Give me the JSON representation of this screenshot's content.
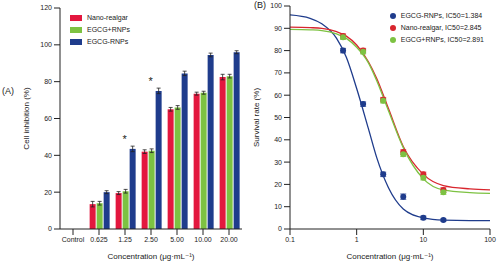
{
  "chart_data": [
    {
      "type": "bar",
      "panel_label": "(A)",
      "x_label": "Concentration (μg·mL⁻¹)",
      "y_label": "Cell inhibition (%)",
      "categories": [
        "Control",
        "0.625",
        "1.25",
        "2.50",
        "5.00",
        "10.00",
        "20.00"
      ],
      "series": [
        {
          "name": "Nano-realgar",
          "color": "#e3173e",
          "values": [
            0,
            13.5,
            19.5,
            42,
            65,
            73.5,
            82.5
          ],
          "errors": [
            0,
            1.5,
            0.8,
            1,
            1,
            0.8,
            1.5
          ]
        },
        {
          "name": "EGCG+RNPs",
          "color": "#7dc242",
          "values": [
            0,
            14,
            20.5,
            42.5,
            66,
            74,
            83
          ],
          "errors": [
            0,
            1,
            1,
            1,
            1,
            0.8,
            1
          ]
        },
        {
          "name": "EGCG-RNPs",
          "color": "#1f3c8c",
          "values": [
            0,
            20,
            43.5,
            75,
            84.5,
            94.5,
            96
          ],
          "errors": [
            0,
            0.8,
            1.5,
            1.5,
            1.2,
            1,
            0.8
          ]
        }
      ],
      "annotations": [
        {
          "category": "1.25",
          "text": "*"
        },
        {
          "category": "2.50",
          "text": "*"
        }
      ],
      "ylim": [
        0,
        120
      ],
      "yticks": [
        0,
        20,
        40,
        60,
        80,
        100,
        120
      ],
      "grid": false,
      "legend": "upper left"
    },
    {
      "type": "scatter",
      "panel_label": "(B)",
      "x_label": "Concentration (μg·mL⁻¹)",
      "y_label": "Survival rate (%)",
      "x": [
        0.625,
        1.25,
        2.5,
        5,
        10,
        20
      ],
      "fit_x": [
        0.1,
        0.2,
        0.3,
        0.5,
        0.7,
        1,
        1.5,
        2,
        3,
        5,
        10,
        20,
        50,
        100
      ],
      "series": [
        {
          "name": "EGCG-RNPs, IC50=1.384",
          "color": "#1f3c8c",
          "marker": "circle",
          "values": [
            80,
            56,
            24.5,
            14.5,
            5,
            4
          ],
          "errors": [
            1,
            1,
            1,
            1.2,
            0.8,
            0.5
          ],
          "fit_values": [
            96,
            94.5,
            92,
            85.5,
            77,
            63,
            45,
            32,
            18.5,
            9,
            5,
            4,
            3.8,
            3.8
          ]
        },
        {
          "name": "Nano-realgar, IC50=2.845",
          "color": "#d8262e",
          "marker": "circle",
          "values": [
            86.5,
            80,
            58,
            34.5,
            24.5,
            17.5
          ],
          "errors": [
            1,
            1,
            1,
            1,
            1,
            1
          ],
          "fit_values": [
            90.5,
            90.3,
            90,
            88.5,
            86.5,
            82.5,
            75,
            67.5,
            54,
            37,
            24.5,
            19.5,
            18,
            17.5
          ]
        },
        {
          "name": "EGCG+RNPs, IC50=2.891",
          "color": "#7dc242",
          "marker": "circle",
          "values": [
            86,
            79.5,
            57.5,
            33.5,
            23,
            16.5
          ],
          "errors": [
            1,
            1,
            1,
            1,
            1,
            1
          ],
          "fit_values": [
            89.5,
            89.3,
            89,
            87.5,
            85.5,
            81.5,
            74.5,
            66.5,
            53,
            36.5,
            22.5,
            17.5,
            16.3,
            16
          ]
        }
      ],
      "log": "x",
      "xlim": [
        0.1,
        100
      ],
      "xticks": [
        0.1,
        1,
        10,
        100
      ],
      "ylim": [
        0,
        100
      ],
      "yticks": [
        0,
        10,
        20,
        30,
        40,
        50,
        60,
        70,
        80,
        90,
        100
      ],
      "grid": false,
      "legend": "upper right"
    }
  ]
}
